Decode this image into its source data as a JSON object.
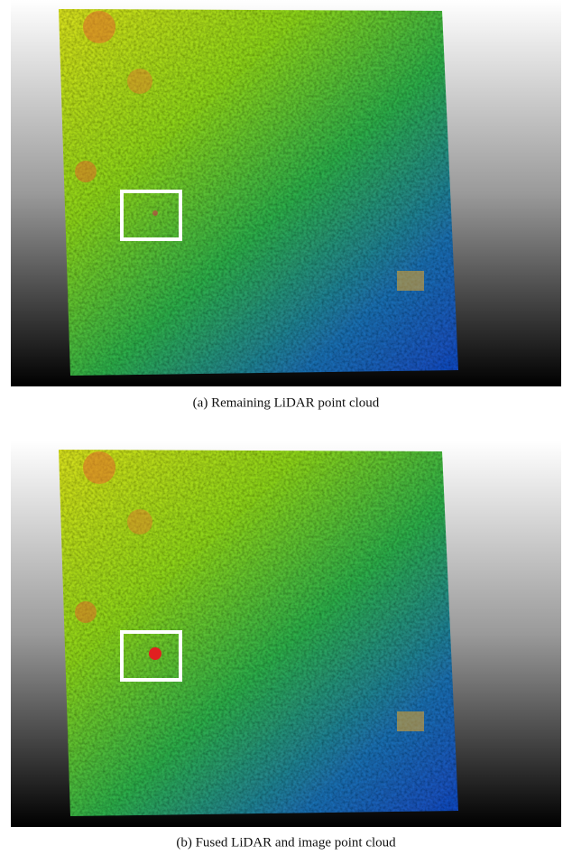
{
  "figures": [
    {
      "caption": "(a)  Remaining LiDAR point cloud"
    },
    {
      "caption": "(b)  Fused LiDAR and image point cloud"
    }
  ]
}
